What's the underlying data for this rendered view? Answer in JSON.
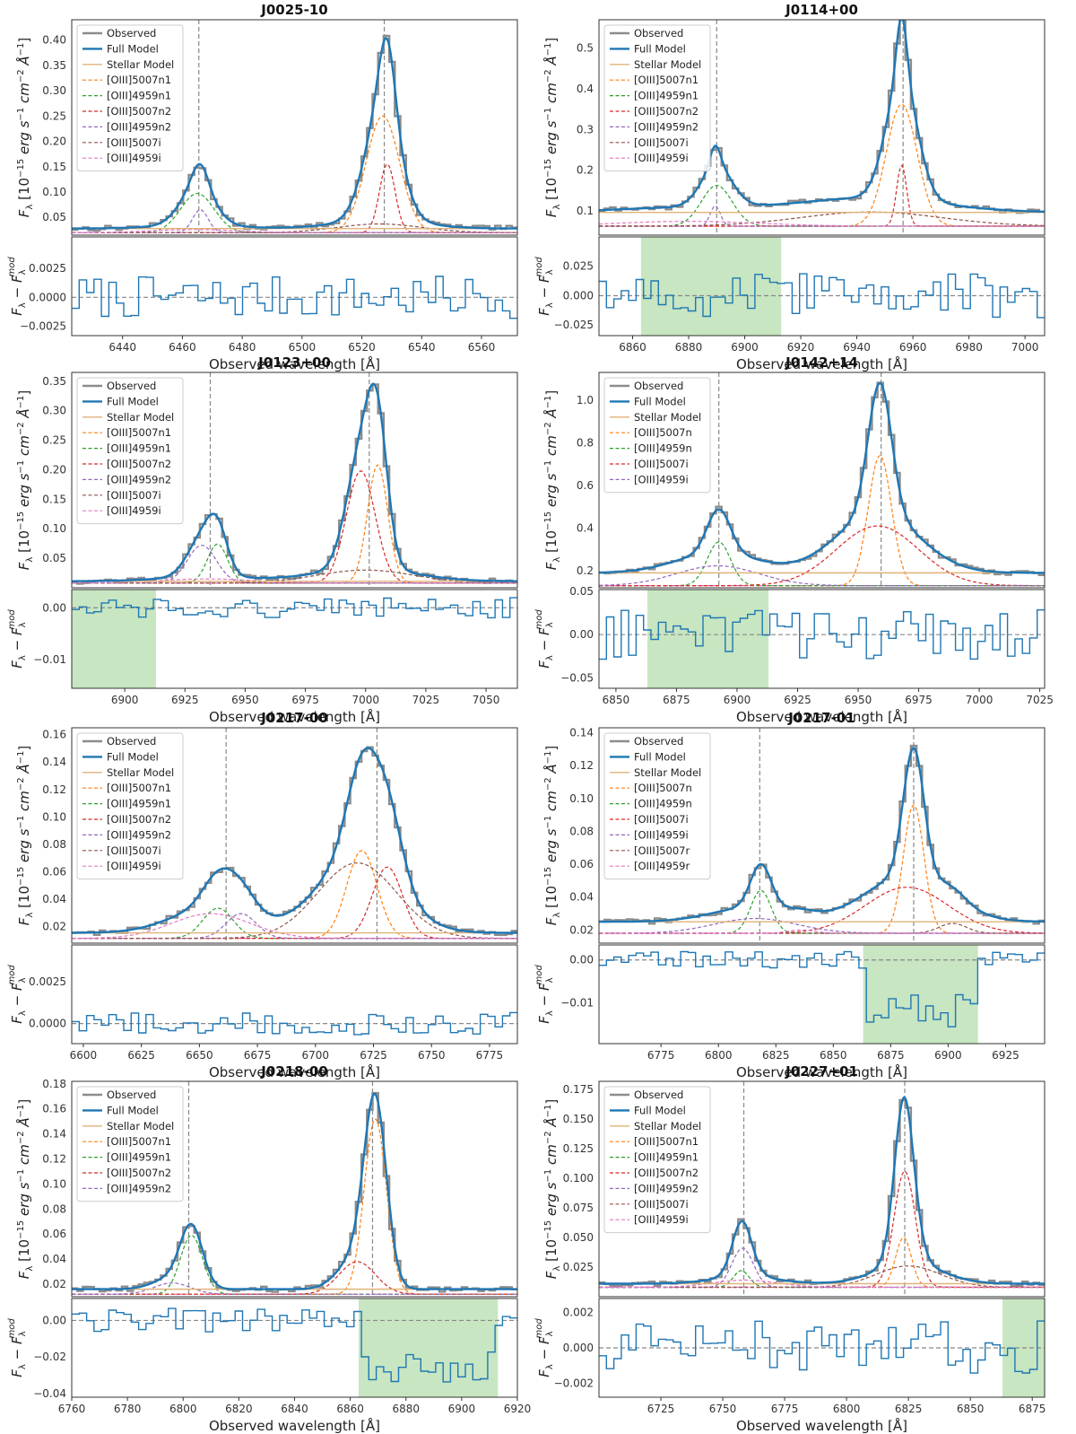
{
  "figure": {
    "xlabel_text": "Observed wavelength [Å]"
  },
  "colors": {
    "observed": "#8c8c8c",
    "full": "#1f77b4",
    "stellar": "#e0b27a",
    "c5007n1": "#ff7f0e",
    "c4959n1": "#2ca02c",
    "c5007n2": "#d62728",
    "c4959n2": "#9467bd",
    "c5007i": "#8c564b",
    "c4959i": "#e377c2",
    "residual": "#1f77b4",
    "shade": "#c7e6c1"
  },
  "chart_data": [
    {
      "type": "line",
      "title": "J0025-10",
      "xlim": [
        6423,
        6572
      ],
      "ylim": [
        0.015,
        0.44
      ],
      "rylim": [
        -0.0033,
        0.0052
      ],
      "xticks": [
        6440,
        6460,
        6480,
        6500,
        6520,
        6540,
        6560
      ],
      "yticks": [
        0.05,
        0.1,
        0.15,
        0.2,
        0.25,
        0.3,
        0.35,
        0.4
      ],
      "yticklabels": [
        "0.05",
        "0.10",
        "0.15",
        "0.20",
        "0.25",
        "0.30",
        "0.35",
        "0.40"
      ],
      "ryticks": [
        -0.0025,
        0.0,
        0.0025
      ],
      "ryticklabels": [
        "−0.0025",
        "0.0000",
        "0.0025"
      ],
      "vlines": [
        6465.5,
        6527.5
      ],
      "shade": null,
      "continuum": 0.02,
      "stellar_level": 0.028,
      "legend": [
        "Observed",
        "Full Model",
        "Stellar Model",
        "[OIII]5007n1",
        "[OIII]4959n1",
        "[OIII]5007n2",
        "[OIII]4959n2",
        "[OIII]5007i",
        "[OIII]4959i"
      ],
      "components": [
        {
          "name": "[OIII]5007n1",
          "center": 6527.0,
          "amp": 0.23,
          "sigma": 5.6
        },
        {
          "name": "[OIII]4959n1",
          "center": 6465.0,
          "amp": 0.077,
          "sigma": 5.6
        },
        {
          "name": "[OIII]5007n2",
          "center": 6528.5,
          "amp": 0.135,
          "sigma": 2.6
        },
        {
          "name": "[OIII]4959n2",
          "center": 6466.0,
          "amp": 0.045,
          "sigma": 2.6
        },
        {
          "name": "[OIII]5007i",
          "center": 6526.0,
          "amp": 0.017,
          "sigma": 14.0
        },
        {
          "name": "[OIII]4959i",
          "center": 6464.0,
          "amp": 0.006,
          "sigma": 14.0
        }
      ]
    },
    {
      "type": "line",
      "title": "J0114+00",
      "xlim": [
        6848,
        7007
      ],
      "ylim": [
        0.04,
        0.57
      ],
      "rylim": [
        -0.034,
        0.05
      ],
      "xticks": [
        6860,
        6880,
        6900,
        6920,
        6940,
        6960,
        6980,
        7000
      ],
      "yticks": [
        0.1,
        0.2,
        0.3,
        0.4,
        0.5
      ],
      "yticklabels": [
        "0.1",
        "0.2",
        "0.3",
        "0.4",
        "0.5"
      ],
      "ryticks": [
        -0.025,
        0.0,
        0.025
      ],
      "ryticklabels": [
        "−0.025",
        "0.000",
        "0.025"
      ],
      "vlines": [
        6890.0,
        6956.5
      ],
      "shade": [
        6863,
        6913
      ],
      "continuum": 0.062,
      "stellar_level": 0.096,
      "legend": [
        "Observed",
        "Full Model",
        "Stellar Model",
        "[OIII]5007n1",
        "[OIII]4959n1",
        "[OIII]5007n2",
        "[OIII]4959n2",
        "[OIII]5007i",
        "[OIII]4959i"
      ],
      "components": [
        {
          "name": "[OIII]5007n1",
          "center": 6956.0,
          "amp": 0.3,
          "sigma": 5.5
        },
        {
          "name": "[OIII]4959n1",
          "center": 6890.0,
          "amp": 0.1,
          "sigma": 5.5
        },
        {
          "name": "[OIII]5007n2",
          "center": 6956.0,
          "amp": 0.15,
          "sigma": 1.8
        },
        {
          "name": "[OIII]4959n2",
          "center": 6889.5,
          "amp": 0.05,
          "sigma": 1.8
        },
        {
          "name": "[OIII]5007i",
          "center": 6945.0,
          "amp": 0.035,
          "sigma": 25.0
        },
        {
          "name": "[OIII]4959i",
          "center": 6880.0,
          "amp": 0.012,
          "sigma": 25.0
        }
      ]
    },
    {
      "type": "line",
      "title": "J0123+00",
      "xlim": [
        6878,
        7063
      ],
      "ylim": [
        0.0,
        0.365
      ],
      "rylim": [
        -0.0155,
        0.0035
      ],
      "xticks": [
        6900,
        6925,
        6950,
        6975,
        7000,
        7025,
        7050
      ],
      "yticks": [
        0.05,
        0.1,
        0.15,
        0.2,
        0.25,
        0.3,
        0.35
      ],
      "yticklabels": [
        "0.05",
        "0.10",
        "0.15",
        "0.20",
        "0.25",
        "0.30",
        "0.35"
      ],
      "ryticks": [
        -0.01,
        0.0
      ],
      "ryticklabels": [
        "−0.01",
        "0.00"
      ],
      "vlines": [
        6935.5,
        7001.5
      ],
      "shade": [
        6878,
        6913
      ],
      "continuum": 0.008,
      "stellar_level": 0.011,
      "legend": [
        "Observed",
        "Full Model",
        "Stellar Model",
        "[OIII]5007n1",
        "[OIII]4959n1",
        "[OIII]5007n2",
        "[OIII]4959n2",
        "[OIII]5007i",
        "[OIII]4959i"
      ],
      "components": [
        {
          "name": "[OIII]5007n1",
          "center": 7005.0,
          "amp": 0.2,
          "sigma": 4.2
        },
        {
          "name": "[OIII]4959n1",
          "center": 6938.5,
          "amp": 0.066,
          "sigma": 4.2
        },
        {
          "name": "[OIII]5007n2",
          "center": 6998.0,
          "amp": 0.19,
          "sigma": 6.0
        },
        {
          "name": "[OIII]4959n2",
          "center": 6932.0,
          "amp": 0.064,
          "sigma": 6.0
        },
        {
          "name": "[OIII]5007i",
          "center": 7000.0,
          "amp": 0.022,
          "sigma": 20.0
        },
        {
          "name": "[OIII]4959i",
          "center": 6934.0,
          "amp": 0.007,
          "sigma": 20.0
        }
      ]
    },
    {
      "type": "line",
      "title": "J0142+14",
      "xlim": [
        6843,
        7027
      ],
      "ylim": [
        0.12,
        1.13
      ],
      "rylim": [
        -0.062,
        0.052
      ],
      "xticks": [
        6850,
        6875,
        6900,
        6925,
        6950,
        6975,
        7000,
        7025
      ],
      "yticks": [
        0.2,
        0.4,
        0.6,
        0.8,
        1.0
      ],
      "yticklabels": [
        "0.2",
        "0.4",
        "0.6",
        "0.8",
        "1.0"
      ],
      "ryticks": [
        -0.05,
        0.0,
        0.05
      ],
      "ryticklabels": [
        "−0.05",
        "0.00",
        "0.05"
      ],
      "vlines": [
        6892.5,
        6959.5
      ],
      "shade": [
        6863,
        6913
      ],
      "continuum": 0.13,
      "stellar_level": 0.19,
      "legend": [
        "Observed",
        "Full Model",
        "Stellar Model",
        "[OIII]5007n",
        "[OIII]4959n",
        "[OIII]5007i",
        "[OIII]4959i"
      ],
      "components": [
        {
          "name": "[OIII]5007n",
          "center": 6959.0,
          "amp": 0.61,
          "sigma": 4.8
        },
        {
          "name": "[OIII]4959n",
          "center": 6892.5,
          "amp": 0.205,
          "sigma": 4.8
        },
        {
          "name": "[OIII]5007i",
          "center": 6958.0,
          "amp": 0.28,
          "sigma": 17.0
        },
        {
          "name": "[OIII]4959i",
          "center": 6892.0,
          "amp": 0.093,
          "sigma": 17.0
        }
      ]
    },
    {
      "type": "line",
      "title": "J0217-00",
      "xlim": [
        6595,
        6787
      ],
      "ylim": [
        0.008,
        0.165
      ],
      "rylim": [
        -0.0012,
        0.0047
      ],
      "xticks": [
        6600,
        6625,
        6650,
        6675,
        6700,
        6725,
        6750,
        6775
      ],
      "yticks": [
        0.02,
        0.04,
        0.06,
        0.08,
        0.1,
        0.12,
        0.14,
        0.16
      ],
      "yticklabels": [
        "0.02",
        "0.04",
        "0.06",
        "0.08",
        "0.10",
        "0.12",
        "0.14",
        "0.16"
      ],
      "ryticks": [
        0.0,
        0.0025
      ],
      "ryticklabels": [
        "0.0000",
        "0.0025"
      ],
      "vlines": [
        6661.5,
        6726.5
      ],
      "shade": null,
      "continuum": 0.0115,
      "stellar_level": 0.0155,
      "legend": [
        "Observed",
        "Full Model",
        "Stellar Model",
        "[OIII]5007n1",
        "[OIII]4959n1",
        "[OIII]5007n2",
        "[OIII]4959n2",
        "[OIII]5007i",
        "[OIII]4959i"
      ],
      "components": [
        {
          "name": "[OIII]5007n1",
          "center": 6720.0,
          "amp": 0.064,
          "sigma": 6.5
        },
        {
          "name": "[OIII]4959n1",
          "center": 6658.0,
          "amp": 0.022,
          "sigma": 6.5
        },
        {
          "name": "[OIII]5007n2",
          "center": 6731.0,
          "amp": 0.052,
          "sigma": 6.5
        },
        {
          "name": "[OIII]4959n2",
          "center": 6668.0,
          "amp": 0.018,
          "sigma": 6.5
        },
        {
          "name": "[OIII]5007i",
          "center": 6718.0,
          "amp": 0.055,
          "sigma": 17.0
        },
        {
          "name": "[OIII]4959i",
          "center": 6655.0,
          "amp": 0.018,
          "sigma": 17.0
        }
      ]
    },
    {
      "type": "line",
      "title": "J0217-01",
      "xlim": [
        6748,
        6942
      ],
      "ylim": [
        0.012,
        0.143
      ],
      "rylim": [
        -0.0195,
        0.0035
      ],
      "xticks": [
        6775,
        6800,
        6825,
        6850,
        6875,
        6900,
        6925
      ],
      "yticks": [
        0.02,
        0.04,
        0.06,
        0.08,
        0.1,
        0.12,
        0.14
      ],
      "yticklabels": [
        "0.02",
        "0.04",
        "0.06",
        "0.08",
        "0.10",
        "0.12",
        "0.14"
      ],
      "ryticks": [
        -0.01,
        0.0
      ],
      "ryticklabels": [
        "−0.01",
        "0.00"
      ],
      "vlines": [
        6818.0,
        6885.0
      ],
      "shade": [
        6863,
        6913
      ],
      "continuum": 0.018,
      "stellar_level": 0.025,
      "legend": [
        "Observed",
        "Full Model",
        "Stellar Model",
        "[OIII]5007n",
        "[OIII]4959n",
        "[OIII]5007i",
        "[OIII]4959i",
        "[OIII]5007r",
        "[OIII]4959r"
      ],
      "components": [
        {
          "name": "[OIII]5007n",
          "center": 6885.0,
          "amp": 0.078,
          "sigma": 4.5
        },
        {
          "name": "[OIII]4959n",
          "center": 6818.5,
          "amp": 0.026,
          "sigma": 4.5
        },
        {
          "name": "[OIII]5007i",
          "center": 6882.0,
          "amp": 0.028,
          "sigma": 18.0
        },
        {
          "name": "[OIII]4959i",
          "center": 6816.0,
          "amp": 0.009,
          "sigma": 18.0
        },
        {
          "name": "[OIII]5007r",
          "center": 6902.0,
          "amp": 0.006,
          "sigma": 6.0
        },
        {
          "name": "[OIII]4959r",
          "center": 6836.0,
          "amp": 0.002,
          "sigma": 6.0
        }
      ]
    },
    {
      "type": "line",
      "title": "J0218-00",
      "xlim": [
        6760,
        6920
      ],
      "ylim": [
        0.01,
        0.182
      ],
      "rylim": [
        -0.042,
        0.012
      ],
      "xticks": [
        6760,
        6780,
        6800,
        6820,
        6840,
        6860,
        6880,
        6900,
        6920
      ],
      "yticks": [
        0.02,
        0.04,
        0.06,
        0.08,
        0.1,
        0.12,
        0.14,
        0.16,
        0.18
      ],
      "yticklabels": [
        "0.02",
        "0.04",
        "0.06",
        "0.08",
        "0.10",
        "0.12",
        "0.14",
        "0.16",
        "0.18"
      ],
      "ryticks": [
        -0.04,
        -0.02,
        0.0
      ],
      "ryticklabels": [
        "−0.04",
        "−0.02",
        "0.00"
      ],
      "vlines": [
        6802.0,
        6868.0
      ],
      "shade": [
        6863,
        6913
      ],
      "continuum": 0.012,
      "stellar_level": 0.016,
      "legend": [
        "Observed",
        "Full Model",
        "Stellar Model",
        "[OIII]5007n1",
        "[OIII]4959n1",
        "[OIII]5007n2",
        "[OIII]4959n2"
      ],
      "components": [
        {
          "name": "[OIII]5007n1",
          "center": 6869.0,
          "amp": 0.14,
          "sigma": 4.0
        },
        {
          "name": "[OIII]4959n1",
          "center": 6803.0,
          "amp": 0.047,
          "sigma": 4.0
        },
        {
          "name": "[OIII]5007n2",
          "center": 6862.5,
          "amp": 0.026,
          "sigma": 6.5
        },
        {
          "name": "[OIII]4959n2",
          "center": 6796.0,
          "amp": 0.009,
          "sigma": 6.5
        }
      ]
    },
    {
      "type": "line",
      "title": "J0227+01",
      "xlim": [
        6700,
        6880
      ],
      "ylim": [
        0.0,
        0.182
      ],
      "rylim": [
        -0.0028,
        0.0028
      ],
      "xticks": [
        6725,
        6750,
        6775,
        6800,
        6825,
        6850,
        6875
      ],
      "yticks": [
        0.025,
        0.05,
        0.075,
        0.1,
        0.125,
        0.15,
        0.175
      ],
      "yticklabels": [
        "0.025",
        "0.050",
        "0.075",
        "0.100",
        "0.125",
        "0.150",
        "0.175"
      ],
      "ryticks": [
        -0.002,
        0.0,
        0.002
      ],
      "ryticklabels": [
        "−0.002",
        "0.000",
        "0.002"
      ],
      "vlines": [
        6758.5,
        6823.5
      ],
      "shade": [
        6863,
        6880
      ],
      "continuum": 0.008,
      "stellar_level": 0.011,
      "legend": [
        "Observed",
        "Full Model",
        "Stellar Model",
        "[OIII]5007n1",
        "[OIII]4959n1",
        "[OIII]5007n2",
        "[OIII]4959n2",
        "[OIII]5007i",
        "[OIII]4959i"
      ],
      "components": [
        {
          "name": "[OIII]5007n1",
          "center": 6823.0,
          "amp": 0.042,
          "sigma": 3.2
        },
        {
          "name": "[OIII]4959n1",
          "center": 6757.5,
          "amp": 0.014,
          "sigma": 3.2
        },
        {
          "name": "[OIII]5007n2",
          "center": 6823.5,
          "amp": 0.098,
          "sigma": 4.3
        },
        {
          "name": "[OIII]4959n2",
          "center": 6758.0,
          "amp": 0.033,
          "sigma": 4.3
        },
        {
          "name": "[OIII]5007i",
          "center": 6825.0,
          "amp": 0.018,
          "sigma": 13.0
        },
        {
          "name": "[OIII]4959i",
          "center": 6759.0,
          "amp": 0.006,
          "sigma": 13.0
        }
      ]
    }
  ]
}
